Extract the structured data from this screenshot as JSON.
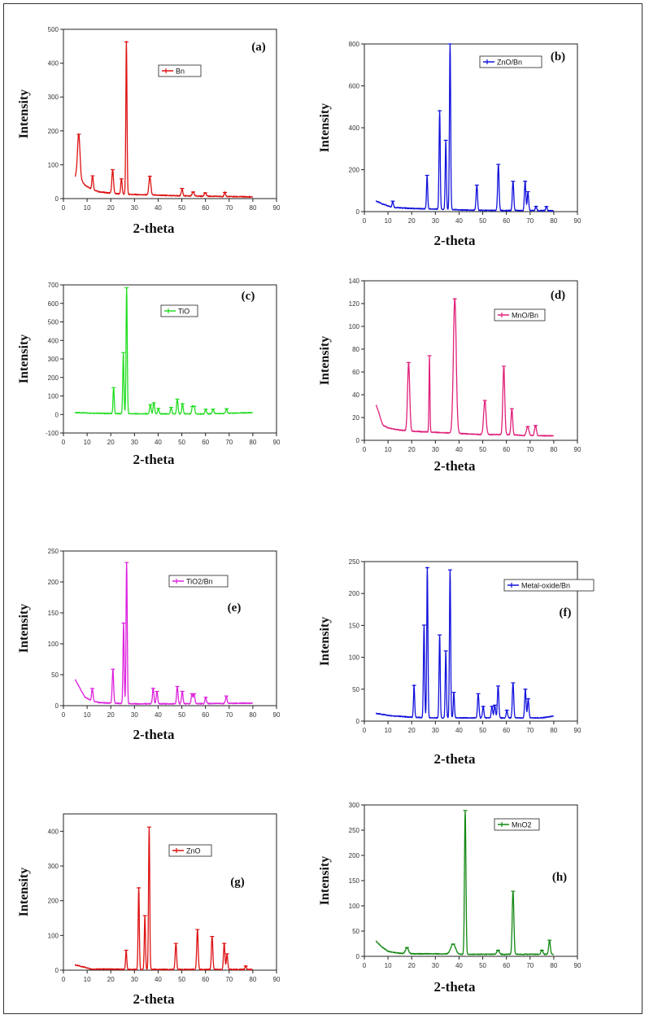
{
  "chart_data": [
    {
      "type": "line",
      "panel": "(a)",
      "legend": "Bn",
      "color": "#dd1111",
      "xlabel": "2-theta",
      "ylabel": "Intensity",
      "xlim": [
        0,
        90
      ],
      "ylim": [
        0,
        500
      ],
      "xticks": [
        0,
        10,
        20,
        30,
        40,
        50,
        60,
        70,
        80,
        90
      ],
      "yticks": [
        0,
        100,
        200,
        300,
        400,
        500
      ],
      "baseline": [
        [
          5,
          65
        ],
        [
          6,
          80
        ],
        [
          7,
          60
        ],
        [
          9,
          40
        ],
        [
          12,
          28
        ],
        [
          15,
          20
        ],
        [
          20,
          16
        ],
        [
          25,
          13
        ],
        [
          30,
          12
        ],
        [
          35,
          11
        ],
        [
          40,
          10
        ],
        [
          50,
          8
        ],
        [
          60,
          7
        ],
        [
          70,
          6
        ],
        [
          80,
          5
        ]
      ],
      "peaks": [
        [
          6.5,
          120,
          0.5
        ],
        [
          12.3,
          40,
          0.3
        ],
        [
          20.8,
          70,
          0.35
        ],
        [
          24.5,
          45,
          0.3
        ],
        [
          26.6,
          450,
          0.25
        ],
        [
          36.5,
          55,
          0.4
        ],
        [
          50.1,
          22,
          0.3
        ],
        [
          54.8,
          12,
          0.4
        ],
        [
          59.9,
          10,
          0.4
        ],
        [
          68.2,
          12,
          0.3
        ]
      ]
    },
    {
      "type": "line",
      "panel": "(b)",
      "legend": "ZnO/Bn",
      "color": "#1111dd",
      "xlabel": "2-theta",
      "ylabel": "Intensity",
      "xlim": [
        0,
        90
      ],
      "ylim": [
        0,
        800
      ],
      "xticks": [
        0,
        10,
        20,
        30,
        40,
        50,
        60,
        70,
        80,
        90
      ],
      "yticks": [
        0,
        200,
        400,
        600,
        800
      ],
      "baseline": [
        [
          5,
          50
        ],
        [
          8,
          35
        ],
        [
          12,
          20
        ],
        [
          20,
          15
        ],
        [
          30,
          12
        ],
        [
          40,
          8
        ],
        [
          50,
          6
        ],
        [
          60,
          5
        ],
        [
          70,
          5
        ],
        [
          80,
          4
        ]
      ],
      "peaks": [
        [
          12,
          30,
          0.3
        ],
        [
          26.5,
          160,
          0.25
        ],
        [
          31.8,
          470,
          0.25
        ],
        [
          34.4,
          330,
          0.25
        ],
        [
          36.2,
          800,
          0.25
        ],
        [
          47.5,
          120,
          0.3
        ],
        [
          56.6,
          220,
          0.3
        ],
        [
          62.8,
          140,
          0.3
        ],
        [
          67.9,
          140,
          0.3
        ],
        [
          69.1,
          90,
          0.3
        ],
        [
          72.5,
          20,
          0.3
        ],
        [
          76.9,
          20,
          0.3
        ]
      ]
    },
    {
      "type": "line",
      "panel": "(c)",
      "legend": "TiO",
      "color": "#22dd22",
      "xlabel": "2-theta",
      "ylabel": "Intensity",
      "xlim": [
        0,
        90
      ],
      "ylim": [
        -100,
        700
      ],
      "xticks": [
        0,
        10,
        20,
        30,
        40,
        50,
        60,
        70,
        80,
        90
      ],
      "yticks": [
        -100,
        0,
        100,
        200,
        300,
        400,
        500,
        600,
        700
      ],
      "baseline": [
        [
          5,
          10
        ],
        [
          20,
          5
        ],
        [
          40,
          3
        ],
        [
          60,
          3
        ],
        [
          80,
          10
        ]
      ],
      "peaks": [
        [
          21.2,
          140,
          0.25
        ],
        [
          25.3,
          330,
          0.25
        ],
        [
          26.7,
          680,
          0.25
        ],
        [
          36.7,
          50,
          0.3
        ],
        [
          38.2,
          60,
          0.3
        ],
        [
          40.1,
          30,
          0.3
        ],
        [
          45.5,
          35,
          0.3
        ],
        [
          48.1,
          80,
          0.3
        ],
        [
          50.3,
          55,
          0.3
        ],
        [
          54.5,
          40,
          0.3
        ],
        [
          55.2,
          40,
          0.3
        ],
        [
          60.1,
          25,
          0.3
        ],
        [
          63.2,
          25,
          0.3
        ],
        [
          68.9,
          25,
          0.3
        ]
      ]
    },
    {
      "type": "line",
      "panel": "(d)",
      "legend": "MnO/Bn",
      "color": "#e0207a",
      "xlabel": "2-theta",
      "ylabel": "Intensity",
      "xlim": [
        0,
        90
      ],
      "ylim": [
        0,
        140
      ],
      "xticks": [
        0,
        10,
        20,
        30,
        40,
        50,
        60,
        70,
        80,
        90
      ],
      "yticks": [
        0,
        20,
        40,
        60,
        80,
        100,
        120,
        140
      ],
      "baseline": [
        [
          5,
          31
        ],
        [
          6,
          25
        ],
        [
          7,
          18
        ],
        [
          8,
          13
        ],
        [
          10,
          11
        ],
        [
          15,
          9
        ],
        [
          20,
          8
        ],
        [
          30,
          7
        ],
        [
          40,
          6
        ],
        [
          50,
          5
        ],
        [
          60,
          5
        ],
        [
          70,
          4
        ],
        [
          80,
          4
        ]
      ],
      "peaks": [
        [
          18.7,
          60,
          0.45
        ],
        [
          27.5,
          67,
          0.2
        ],
        [
          38.2,
          118,
          0.6
        ],
        [
          50.9,
          30,
          0.5
        ],
        [
          58.9,
          60,
          0.4
        ],
        [
          62.3,
          23,
          0.35
        ],
        [
          69,
          8,
          0.5
        ],
        [
          72.3,
          9,
          0.4
        ]
      ]
    },
    {
      "type": "line",
      "panel": "(e)",
      "legend": "TiO2/Bn",
      "color": "#dd22dd",
      "xlabel": "2-theta",
      "ylabel": "Intensity",
      "xlim": [
        0,
        90
      ],
      "ylim": [
        0,
        250
      ],
      "xticks": [
        0,
        10,
        20,
        30,
        40,
        50,
        60,
        70,
        80,
        90
      ],
      "yticks": [
        0,
        50,
        100,
        150,
        200,
        250
      ],
      "baseline": [
        [
          5,
          42
        ],
        [
          7,
          28
        ],
        [
          9,
          14
        ],
        [
          12,
          8
        ],
        [
          15,
          5
        ],
        [
          20,
          4
        ],
        [
          30,
          3
        ],
        [
          50,
          3
        ],
        [
          80,
          4
        ]
      ],
      "peaks": [
        [
          12.2,
          20,
          0.3
        ],
        [
          20.9,
          55,
          0.3
        ],
        [
          25.4,
          130,
          0.25
        ],
        [
          26.7,
          228,
          0.25
        ],
        [
          37.9,
          25,
          0.3
        ],
        [
          39.5,
          20,
          0.3
        ],
        [
          48.1,
          28,
          0.3
        ],
        [
          50.2,
          20,
          0.3
        ],
        [
          54.3,
          16,
          0.3
        ],
        [
          55.2,
          16,
          0.3
        ],
        [
          60.1,
          10,
          0.3
        ],
        [
          68.8,
          12,
          0.3
        ]
      ]
    },
    {
      "type": "line",
      "panel": "(f)",
      "legend": "Metal-oxide/Bn",
      "color": "#1111dd",
      "xlabel": "2-theta",
      "ylabel": "Intensity",
      "xlim": [
        0,
        90
      ],
      "ylim": [
        0,
        250
      ],
      "xticks": [
        0,
        10,
        20,
        30,
        40,
        50,
        60,
        70,
        80,
        90
      ],
      "yticks": [
        0,
        50,
        100,
        150,
        200,
        250
      ],
      "baseline": [
        [
          5,
          12
        ],
        [
          10,
          9
        ],
        [
          20,
          6
        ],
        [
          30,
          5
        ],
        [
          40,
          5
        ],
        [
          60,
          5
        ],
        [
          75,
          5
        ],
        [
          80,
          8
        ]
      ],
      "peaks": [
        [
          21,
          50,
          0.25
        ],
        [
          25.2,
          145,
          0.25
        ],
        [
          26.6,
          235,
          0.25
        ],
        [
          31.8,
          130,
          0.25
        ],
        [
          34.4,
          105,
          0.25
        ],
        [
          36.2,
          232,
          0.25
        ],
        [
          37.8,
          40,
          0.25
        ],
        [
          48.1,
          38,
          0.3
        ],
        [
          50.2,
          18,
          0.3
        ],
        [
          53.9,
          18,
          0.3
        ],
        [
          55.1,
          20,
          0.3
        ],
        [
          56.5,
          50,
          0.3
        ],
        [
          60.2,
          12,
          0.3
        ],
        [
          62.8,
          55,
          0.3
        ],
        [
          68,
          45,
          0.3
        ],
        [
          69.2,
          30,
          0.3
        ]
      ]
    },
    {
      "type": "line",
      "panel": "(g)",
      "legend": "ZnO",
      "color": "#dd1111",
      "xlabel": "2-theta",
      "ylabel": "Intensity",
      "xlim": [
        0,
        90
      ],
      "ylim": [
        0,
        450
      ],
      "xticks": [
        0,
        10,
        20,
        30,
        40,
        50,
        60,
        70,
        80,
        90
      ],
      "yticks": [
        0,
        100,
        200,
        300,
        400
      ],
      "baseline": [
        [
          5,
          15
        ],
        [
          8,
          10
        ],
        [
          12,
          3
        ],
        [
          20,
          3
        ],
        [
          30,
          2
        ],
        [
          50,
          2
        ],
        [
          80,
          2
        ]
      ],
      "peaks": [
        [
          26.5,
          55,
          0.25
        ],
        [
          31.8,
          235,
          0.25
        ],
        [
          34.4,
          155,
          0.25
        ],
        [
          36.2,
          410,
          0.25
        ],
        [
          47.5,
          75,
          0.3
        ],
        [
          56.6,
          115,
          0.3
        ],
        [
          62.8,
          95,
          0.3
        ],
        [
          67.9,
          75,
          0.3
        ],
        [
          69.1,
          45,
          0.3
        ],
        [
          77,
          10,
          0.3
        ]
      ]
    },
    {
      "type": "line",
      "panel": "(h)",
      "legend": "MnO2",
      "color": "#118811",
      "xlabel": "2-theta",
      "ylabel": "Intensity",
      "xlim": [
        0,
        90
      ],
      "ylim": [
        0,
        300
      ],
      "xticks": [
        0,
        10,
        20,
        30,
        40,
        50,
        60,
        70,
        80,
        90
      ],
      "yticks": [
        0,
        50,
        100,
        150,
        200,
        250,
        300
      ],
      "baseline": [
        [
          5,
          30
        ],
        [
          7,
          20
        ],
        [
          10,
          10
        ],
        [
          15,
          6
        ],
        [
          20,
          5
        ],
        [
          30,
          5
        ],
        [
          40,
          4
        ],
        [
          50,
          4
        ],
        [
          60,
          4
        ],
        [
          70,
          4
        ],
        [
          80,
          4
        ]
      ],
      "peaks": [
        [
          18,
          12,
          0.6
        ],
        [
          37.5,
          20,
          1.0
        ],
        [
          42.6,
          285,
          0.3
        ],
        [
          56.5,
          8,
          0.5
        ],
        [
          62.8,
          125,
          0.35
        ],
        [
          75,
          8,
          0.4
        ],
        [
          78.2,
          28,
          0.35
        ]
      ]
    }
  ]
}
